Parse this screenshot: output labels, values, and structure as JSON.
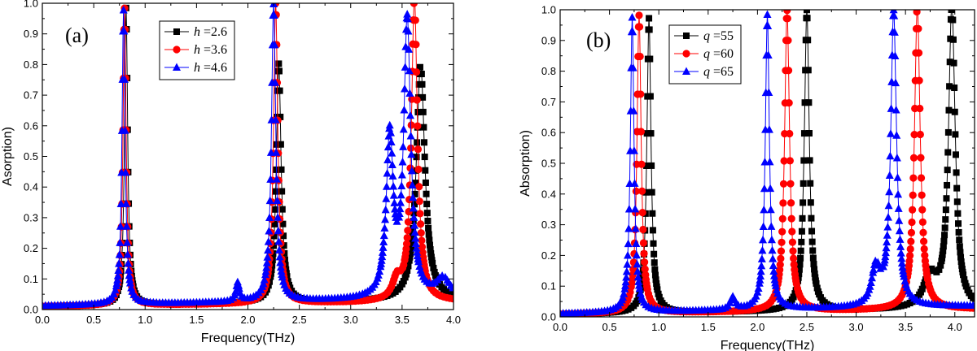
{
  "chart_data": [
    {
      "type": "line",
      "panel_label": "(a)",
      "xlabel": "Frequency(THz)",
      "ylabel": "Asorption)",
      "xlim": [
        0,
        4
      ],
      "ylim": [
        0,
        1
      ],
      "xticks": [
        "0.0",
        "0.5",
        "1.0",
        "1.5",
        "2.0",
        "2.5",
        "3.0",
        "3.5",
        "4.0"
      ],
      "yticks": [
        "0.0",
        "0.1",
        "0.2",
        "0.3",
        "0.4",
        "0.5",
        "0.6",
        "0.7",
        "0.8",
        "0.9",
        "1.0"
      ],
      "legend": "top-left",
      "series": [
        {
          "var": "h",
          "eq": " =2.6",
          "color": "#000000",
          "marker": "square",
          "baseline": 0.01,
          "slope": 0.005,
          "x_start": 0.0,
          "x_end": 4.0,
          "peaks": [
            {
              "x": 0.815,
              "height": 0.97,
              "width": 0.018
            },
            {
              "x": 2.3,
              "height": 0.78,
              "width": 0.028
            },
            {
              "x": 3.68,
              "height": 0.77,
              "width": 0.05
            }
          ]
        },
        {
          "var": "h",
          "eq": " =3.6",
          "color": "#ff0000",
          "marker": "circle",
          "baseline": 0.01,
          "slope": 0.004,
          "x_start": 0.0,
          "x_end": 4.0,
          "peaks": [
            {
              "x": 0.8,
              "height": 0.97,
              "width": 0.018
            },
            {
              "x": 2.27,
              "height": 0.98,
              "width": 0.025
            },
            {
              "x": 3.62,
              "height": 0.99,
              "width": 0.035
            },
            {
              "x": 3.45,
              "height": 0.06,
              "width": 0.05
            }
          ]
        },
        {
          "var": "h",
          "eq": " =4.6",
          "color": "#0000ff",
          "marker": "triangle",
          "baseline": 0.012,
          "slope": 0.006,
          "x_start": 0.0,
          "x_end": 4.0,
          "peaks": [
            {
              "x": 0.79,
              "height": 0.96,
              "width": 0.018
            },
            {
              "x": 1.9,
              "height": 0.06,
              "width": 0.02
            },
            {
              "x": 2.25,
              "height": 0.97,
              "width": 0.025
            },
            {
              "x": 3.38,
              "height": 0.52,
              "width": 0.04
            },
            {
              "x": 3.55,
              "height": 0.9,
              "width": 0.04
            },
            {
              "x": 3.9,
              "height": 0.06,
              "width": 0.08
            }
          ]
        }
      ]
    },
    {
      "type": "line",
      "panel_label": "(b)",
      "xlabel": "Frequency(THz)",
      "ylabel": "Absorption)",
      "xlim": [
        0,
        4.2
      ],
      "ylim": [
        0,
        1
      ],
      "xticks": [
        "0.0",
        "0.5",
        "1.0",
        "1.5",
        "2.0",
        "2.5",
        "3.0",
        "3.5",
        "4.0"
      ],
      "yticks": [
        "0.0",
        "0.1",
        "0.2",
        "0.3",
        "0.4",
        "0.5",
        "0.6",
        "0.7",
        "0.8",
        "0.9",
        "1.0"
      ],
      "legend": "top-left",
      "series": [
        {
          "var": "q",
          "eq": " =55",
          "color": "#000000",
          "marker": "square",
          "baseline": 0.008,
          "slope": 0.004,
          "x_start": 0.0,
          "x_end": 4.2,
          "peaks": [
            {
              "x": 0.9,
              "height": 0.96,
              "width": 0.025
            },
            {
              "x": 2.5,
              "height": 0.98,
              "width": 0.03
            },
            {
              "x": 3.97,
              "height": 0.99,
              "width": 0.04
            },
            {
              "x": 3.75,
              "height": 0.1,
              "width": 0.08
            }
          ]
        },
        {
          "var": "q",
          "eq": " =60",
          "color": "#ff0000",
          "marker": "circle",
          "baseline": 0.008,
          "slope": 0.004,
          "x_start": 0.0,
          "x_end": 4.2,
          "peaks": [
            {
              "x": 0.8,
              "height": 0.97,
              "width": 0.025
            },
            {
              "x": 2.3,
              "height": 0.98,
              "width": 0.03
            },
            {
              "x": 3.62,
              "height": 0.99,
              "width": 0.035
            }
          ]
        },
        {
          "var": "q",
          "eq": " =65",
          "color": "#0000ff",
          "marker": "triangle",
          "baseline": 0.01,
          "slope": 0.006,
          "x_start": 0.0,
          "x_end": 4.2,
          "peaks": [
            {
              "x": 0.73,
              "height": 0.96,
              "width": 0.022
            },
            {
              "x": 1.75,
              "height": 0.04,
              "width": 0.03
            },
            {
              "x": 2.1,
              "height": 0.96,
              "width": 0.025
            },
            {
              "x": 3.2,
              "height": 0.12,
              "width": 0.05
            },
            {
              "x": 3.38,
              "height": 0.96,
              "width": 0.035
            }
          ]
        }
      ]
    }
  ]
}
